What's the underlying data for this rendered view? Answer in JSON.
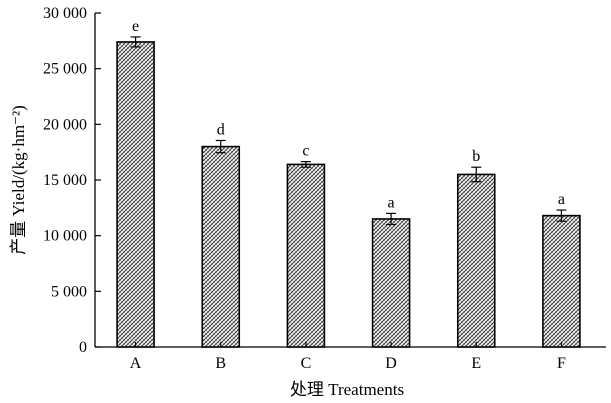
{
  "chart_data": {
    "type": "bar",
    "categories": [
      "A",
      "B",
      "C",
      "D",
      "E",
      "F"
    ],
    "values": [
      27400,
      18000,
      16400,
      11500,
      15500,
      11800
    ],
    "errors": [
      450,
      550,
      250,
      500,
      650,
      500
    ],
    "significance_labels": [
      "e",
      "d",
      "c",
      "a",
      "b",
      "a"
    ],
    "ylim": [
      0,
      30000
    ],
    "yticks": [
      0,
      5000,
      10000,
      15000,
      20000,
      25000,
      30000
    ],
    "ytick_labels": [
      "0",
      "5 000",
      "10 000",
      "15 000",
      "20 000",
      "25 000",
      "30 000"
    ],
    "xlabel": "处理 Treatments",
    "ylabel": "产量 Yield/(kg·hm⁻²)",
    "bar_pattern": "crosshatch",
    "grid": false
  }
}
